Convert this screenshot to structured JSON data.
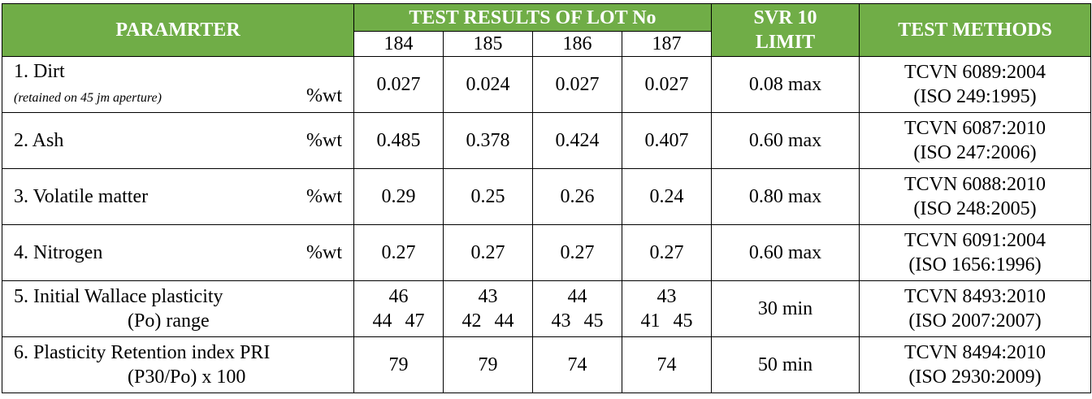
{
  "header": {
    "parameter": "PARAMRTER",
    "test_results": "TEST RESULTS OF LOT No",
    "lots": [
      "184",
      "185",
      "186",
      "187"
    ],
    "limit": "SVR 10 LIMIT",
    "methods": "TEST METHODS"
  },
  "rows": [
    {
      "name": "1. Dirt",
      "note": "(retained on 45 jm aperture)",
      "unit": "%wt",
      "values": [
        "0.027",
        "0.024",
        "0.027",
        "0.027"
      ],
      "limit": "0.08 max",
      "method": [
        "TCVN 6089:2004",
        "(ISO 249:1995)"
      ]
    },
    {
      "name": "2. Ash",
      "unit": "%wt",
      "values": [
        "0.485",
        "0.378",
        "0.424",
        "0.407"
      ],
      "limit": "0.60 max",
      "method": [
        "TCVN 6087:2010",
        "(ISO 247:2006)"
      ]
    },
    {
      "name": "3. Volatile matter",
      "unit": "%wt",
      "values": [
        "0.29",
        "0.25",
        "0.26",
        "0.24"
      ],
      "limit": "0.80 max",
      "method": [
        "TCVN 6088:2010",
        "(ISO 248:2005)"
      ]
    },
    {
      "name": "4. Nitrogen",
      "unit": "%wt",
      "values": [
        "0.27",
        "0.27",
        "0.27",
        "0.27"
      ],
      "limit": "0.60 max",
      "method": [
        "TCVN 6091:2004",
        "(ISO 1656:1996)"
      ]
    },
    {
      "name": "5. Initial Wallace plasticity",
      "name2": "(Po) range",
      "values": [
        "46",
        "43",
        "44",
        "43"
      ],
      "ranges": [
        [
          "44",
          "47"
        ],
        [
          "42",
          "44"
        ],
        [
          "43",
          "45"
        ],
        [
          "41",
          "45"
        ]
      ],
      "limit": "30 min",
      "method": [
        "TCVN 8493:2010",
        "(ISO 2007:2007)"
      ]
    },
    {
      "name": "6. Plasticity Retention index PRI",
      "name2": "(P30/Po) x 100",
      "values": [
        "79",
        "79",
        "74",
        "74"
      ],
      "limit": "50 min",
      "method": [
        "TCVN 8494:2010",
        "(ISO 2930:2009)"
      ]
    }
  ]
}
